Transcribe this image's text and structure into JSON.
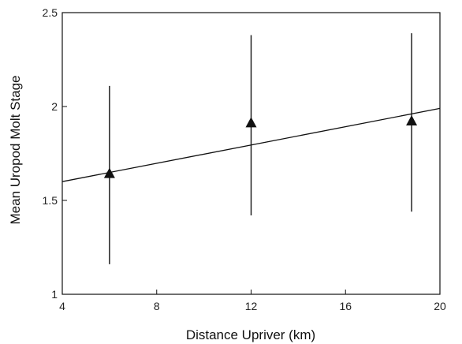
{
  "chart_data": {
    "type": "scatter",
    "xlabel": "Distance Upriver (km)",
    "ylabel": "Mean Uropod Molt Stage",
    "xlim": [
      4,
      20
    ],
    "ylim": [
      1,
      2.5
    ],
    "x_ticks": [
      4,
      8,
      12,
      16,
      20
    ],
    "y_ticks": [
      1,
      1.5,
      2,
      2.5
    ],
    "x_tick_labels": [
      "4",
      "8",
      "12",
      "16",
      "20"
    ],
    "y_tick_labels": [
      "1",
      "1.5",
      "2",
      "2.5"
    ],
    "grid": false,
    "series": [
      {
        "marker": "triangle",
        "points": [
          {
            "x": 6,
            "y": 1.64,
            "y_low": 1.16,
            "y_high": 2.11
          },
          {
            "x": 12,
            "y": 1.91,
            "y_low": 1.42,
            "y_high": 2.38
          },
          {
            "x": 18.8,
            "y": 1.92,
            "y_low": 1.44,
            "y_high": 2.39
          }
        ]
      }
    ],
    "trendline": {
      "x": [
        4,
        20
      ],
      "y": [
        1.6,
        1.99
      ]
    }
  },
  "colors": {
    "ink": "#111111",
    "background": "#ffffff"
  }
}
